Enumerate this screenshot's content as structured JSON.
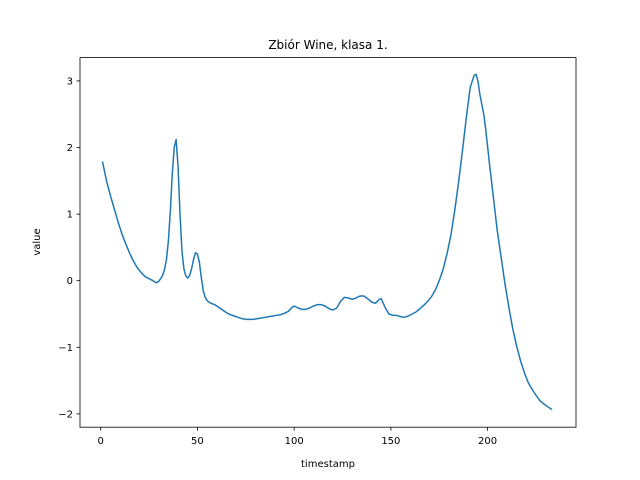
{
  "chart_data": {
    "type": "line",
    "title": "Zbiór Wine, klasa 1.",
    "xlabel": "timestamp",
    "ylabel": "value",
    "xlim": [
      -10.7,
      245.7
    ],
    "ylim": [
      -2.2,
      3.35
    ],
    "xticks": [
      0,
      50,
      100,
      150,
      200
    ],
    "yticks": [
      -2,
      -1,
      0,
      1,
      2,
      3
    ],
    "ytick_labels": [
      "−2",
      "−1",
      "0",
      "1",
      "2",
      "3"
    ],
    "grid": false,
    "series": [
      {
        "color": "#1f77b4",
        "points": [
          [
            1,
            1.78
          ],
          [
            3,
            1.5
          ],
          [
            5,
            1.28
          ],
          [
            7,
            1.08
          ],
          [
            9,
            0.88
          ],
          [
            11,
            0.7
          ],
          [
            13,
            0.55
          ],
          [
            15,
            0.41
          ],
          [
            17,
            0.29
          ],
          [
            19,
            0.19
          ],
          [
            21,
            0.12
          ],
          [
            23,
            0.06
          ],
          [
            25,
            0.03
          ],
          [
            27,
            0.0
          ],
          [
            28,
            -0.02
          ],
          [
            29,
            -0.03
          ],
          [
            30,
            -0.01
          ],
          [
            31,
            0.03
          ],
          [
            32,
            0.08
          ],
          [
            33,
            0.17
          ],
          [
            34,
            0.32
          ],
          [
            35,
            0.6
          ],
          [
            36,
            1.05
          ],
          [
            37,
            1.6
          ],
          [
            38,
            2.0
          ],
          [
            39,
            2.12
          ],
          [
            40,
            1.7
          ],
          [
            41,
            1.0
          ],
          [
            42,
            0.45
          ],
          [
            43,
            0.18
          ],
          [
            44,
            0.07
          ],
          [
            45,
            0.04
          ],
          [
            46,
            0.08
          ],
          [
            47,
            0.18
          ],
          [
            48,
            0.32
          ],
          [
            49,
            0.42
          ],
          [
            50,
            0.4
          ],
          [
            51,
            0.28
          ],
          [
            52,
            0.05
          ],
          [
            53,
            -0.15
          ],
          [
            54,
            -0.25
          ],
          [
            55,
            -0.3
          ],
          [
            57,
            -0.34
          ],
          [
            59,
            -0.36
          ],
          [
            61,
            -0.4
          ],
          [
            63,
            -0.44
          ],
          [
            65,
            -0.48
          ],
          [
            67,
            -0.51
          ],
          [
            69,
            -0.53
          ],
          [
            71,
            -0.55
          ],
          [
            73,
            -0.57
          ],
          [
            75,
            -0.58
          ],
          [
            77,
            -0.58
          ],
          [
            79,
            -0.58
          ],
          [
            81,
            -0.57
          ],
          [
            83,
            -0.56
          ],
          [
            85,
            -0.55
          ],
          [
            87,
            -0.54
          ],
          [
            89,
            -0.53
          ],
          [
            91,
            -0.52
          ],
          [
            93,
            -0.51
          ],
          [
            95,
            -0.49
          ],
          [
            97,
            -0.46
          ],
          [
            99,
            -0.4
          ],
          [
            100,
            -0.38
          ],
          [
            102,
            -0.41
          ],
          [
            104,
            -0.43
          ],
          [
            106,
            -0.43
          ],
          [
            108,
            -0.41
          ],
          [
            110,
            -0.38
          ],
          [
            112,
            -0.36
          ],
          [
            114,
            -0.36
          ],
          [
            116,
            -0.38
          ],
          [
            118,
            -0.42
          ],
          [
            120,
            -0.44
          ],
          [
            122,
            -0.41
          ],
          [
            124,
            -0.31
          ],
          [
            126,
            -0.25
          ],
          [
            128,
            -0.26
          ],
          [
            130,
            -0.28
          ],
          [
            132,
            -0.26
          ],
          [
            134,
            -0.23
          ],
          [
            136,
            -0.23
          ],
          [
            138,
            -0.27
          ],
          [
            140,
            -0.32
          ],
          [
            142,
            -0.34
          ],
          [
            144,
            -0.28
          ],
          [
            145,
            -0.27
          ],
          [
            147,
            -0.4
          ],
          [
            149,
            -0.5
          ],
          [
            151,
            -0.52
          ],
          [
            153,
            -0.52
          ],
          [
            155,
            -0.54
          ],
          [
            157,
            -0.55
          ],
          [
            159,
            -0.53
          ],
          [
            161,
            -0.5
          ],
          [
            163,
            -0.47
          ],
          [
            165,
            -0.42
          ],
          [
            167,
            -0.37
          ],
          [
            169,
            -0.31
          ],
          [
            171,
            -0.24
          ],
          [
            173,
            -0.14
          ],
          [
            175,
            0.0
          ],
          [
            177,
            0.17
          ],
          [
            179,
            0.4
          ],
          [
            181,
            0.68
          ],
          [
            183,
            1.05
          ],
          [
            185,
            1.48
          ],
          [
            187,
            1.95
          ],
          [
            189,
            2.45
          ],
          [
            191,
            2.9
          ],
          [
            193,
            3.08
          ],
          [
            194,
            3.1
          ],
          [
            195,
            3.0
          ],
          [
            196,
            2.8
          ],
          [
            197,
            2.65
          ],
          [
            198,
            2.5
          ],
          [
            199,
            2.28
          ],
          [
            201,
            1.75
          ],
          [
            203,
            1.25
          ],
          [
            205,
            0.75
          ],
          [
            207,
            0.35
          ],
          [
            209,
            -0.05
          ],
          [
            211,
            -0.4
          ],
          [
            213,
            -0.72
          ],
          [
            215,
            -0.98
          ],
          [
            217,
            -1.2
          ],
          [
            219,
            -1.38
          ],
          [
            221,
            -1.53
          ],
          [
            223,
            -1.63
          ],
          [
            225,
            -1.72
          ],
          [
            227,
            -1.8
          ],
          [
            229,
            -1.85
          ],
          [
            231,
            -1.89
          ],
          [
            233,
            -1.93
          ]
        ]
      }
    ]
  }
}
